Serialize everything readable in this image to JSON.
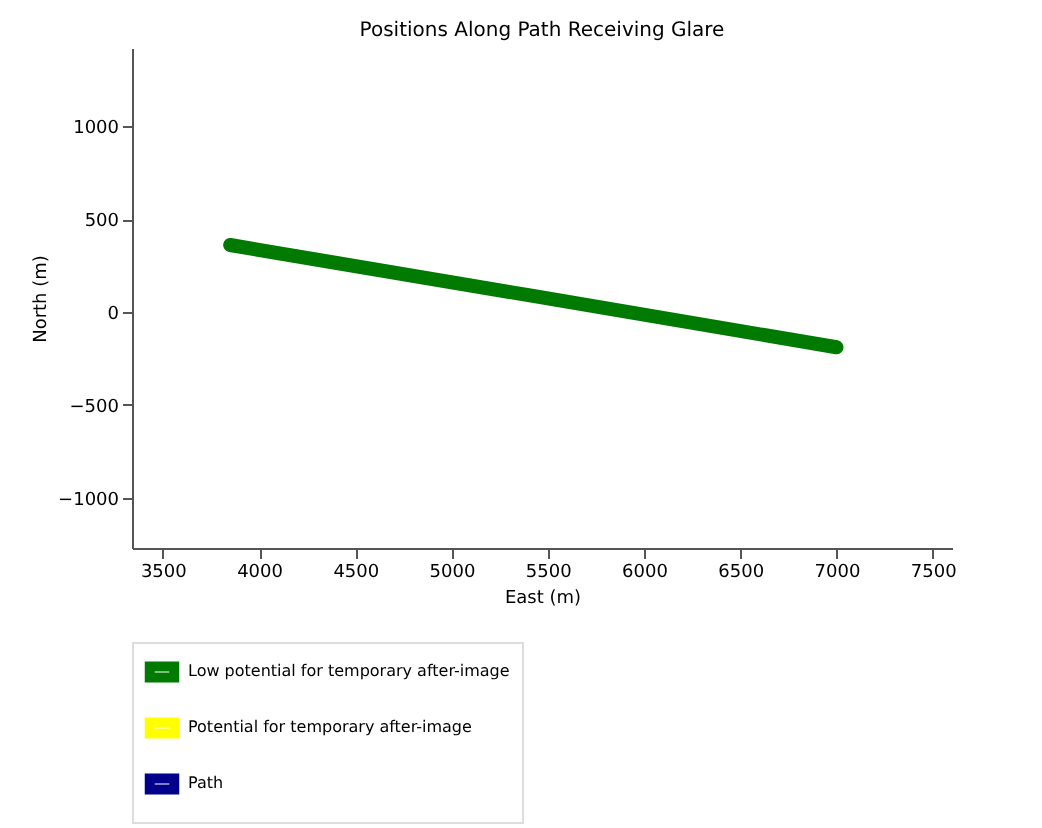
{
  "chart_data": {
    "type": "line",
    "title": "Positions Along Path Receiving Glare",
    "xlabel": "East (m)",
    "ylabel": "North (m)",
    "x": [
      3850,
      5400,
      7000
    ],
    "series": [
      {
        "name": "Low potential for temporary after-image",
        "color": "#007a00",
        "values": [
          360,
          90,
          -190
        ]
      },
      {
        "name": "Potential for temporary after-image",
        "color": "#ffff00",
        "values": [
          null,
          null,
          null
        ]
      },
      {
        "name": "Path",
        "color": "#00008b",
        "values": [
          null,
          null,
          null
        ]
      }
    ],
    "xlim": [
      3340,
      7600
    ],
    "ylim": [
      -1270,
      1420
    ],
    "xticks": [
      3500,
      4000,
      4500,
      5000,
      5500,
      6000,
      6500,
      7000,
      7500
    ],
    "yticks": [
      -1000,
      -500,
      0,
      500,
      1000
    ],
    "grid": false,
    "legend": "bottom",
    "marker": "none",
    "line_style": "solid"
  }
}
